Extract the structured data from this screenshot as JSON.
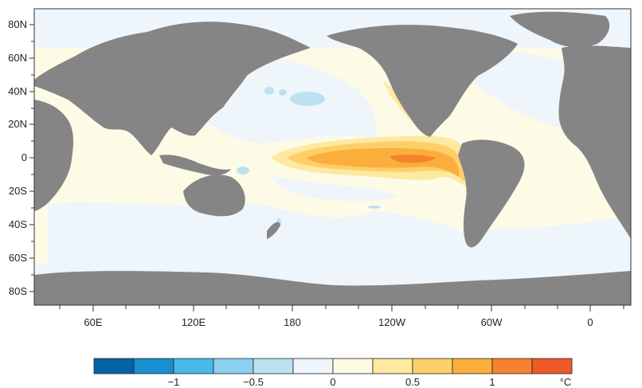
{
  "map": {
    "lat_labels": [
      "80N",
      "60N",
      "40N",
      "20N",
      "0",
      "20S",
      "40S",
      "60S",
      "80S"
    ],
    "lon_labels": [
      "60E",
      "120E",
      "180",
      "120W",
      "60W",
      "0"
    ],
    "lat_range": [
      -90,
      90
    ],
    "lon_range": [
      30,
      390
    ],
    "colors": {
      "land": "#858585",
      "ocean_neutral_warm": "#fdfbe6",
      "ocean_neutral_cool": "#eef5fb",
      "frame": "#333333"
    }
  },
  "colorbar": {
    "unit": "°C",
    "tick_labels": [
      "−1",
      "−0.5",
      "0",
      "0.5",
      "1"
    ],
    "tick_values": [
      -1,
      -0.5,
      0,
      0.5,
      1
    ],
    "bins": [
      -1.5,
      -1.25,
      -1.0,
      -0.75,
      -0.5,
      -0.25,
      0,
      0.25,
      0.5,
      0.75,
      1.0,
      1.25,
      1.5
    ],
    "colors": [
      "#0563a8",
      "#1a8fd0",
      "#4ab8ea",
      "#8bd0f0",
      "#bce2f2",
      "#eef5fb",
      "#fdfbe6",
      "#fdeaa0",
      "#fdcf6a",
      "#fbae3c",
      "#f5822c",
      "#ee5a28"
    ]
  }
}
